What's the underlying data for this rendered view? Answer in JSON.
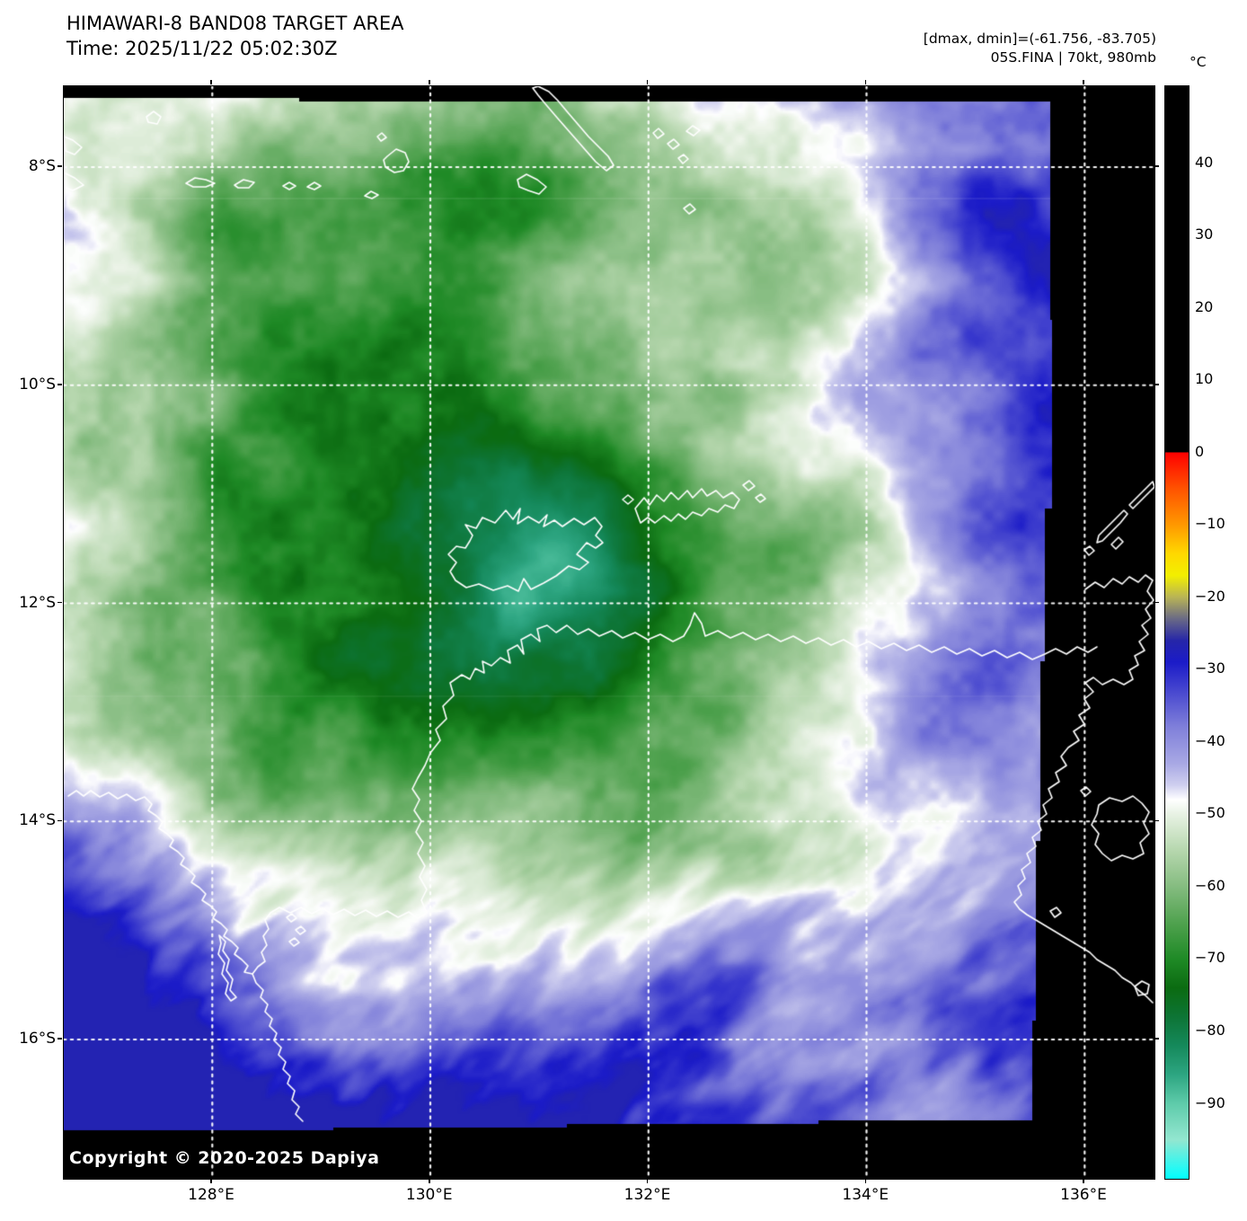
{
  "header": {
    "title": "HIMAWARI-8 BAND08 TARGET AREA",
    "time_line": "Time: 2025/11/22 05:02:30Z",
    "dmax_dmin_line": "[dmax, dmin]=(-61.756, -83.705)",
    "storm_line": "05S.FINA | 70kt, 980mb"
  },
  "map": {
    "copyright": "Copyright © 2020-2025 Dapiya",
    "x_tick_labels": [
      "128°E",
      "130°E",
      "132°E",
      "134°E",
      "136°E"
    ],
    "y_tick_labels": [
      "8°S",
      "10°S",
      "12°S",
      "14°S",
      "16°S"
    ]
  },
  "colorbar": {
    "unit": "°C",
    "tick_labels": [
      "40",
      "30",
      "20",
      "10",
      "0",
      "−10",
      "−20",
      "−30",
      "−40",
      "−50",
      "−60",
      "−70",
      "−80",
      "−90"
    ],
    "tick_values": [
      40,
      30,
      20,
      10,
      0,
      -10,
      -20,
      -30,
      -40,
      -50,
      -60,
      -70,
      -80,
      -90
    ],
    "vmax": 50.6,
    "vmin": -100.4,
    "palette": [
      {
        "t": -100.4,
        "c": "#00ffff"
      },
      {
        "t": -95,
        "c": "#93e6d0"
      },
      {
        "t": -90,
        "c": "#5ecbaa"
      },
      {
        "t": -86,
        "c": "#2da581"
      },
      {
        "t": -82,
        "c": "#15895b"
      },
      {
        "t": -78,
        "c": "#0d7435"
      },
      {
        "t": -74,
        "c": "#0b6b11"
      },
      {
        "t": -70,
        "c": "#1f8a26"
      },
      {
        "t": -65,
        "c": "#50a24f"
      },
      {
        "t": -60,
        "c": "#85bc80"
      },
      {
        "t": -55,
        "c": "#b6d7ae"
      },
      {
        "t": -50,
        "c": "#e8f2e4"
      },
      {
        "t": -48,
        "c": "#ffffff"
      },
      {
        "t": -46,
        "c": "#cfcfef"
      },
      {
        "t": -43,
        "c": "#a8a8e4"
      },
      {
        "t": -38,
        "c": "#8080da"
      },
      {
        "t": -33,
        "c": "#4747cf"
      },
      {
        "t": -29,
        "c": "#1b1bc8"
      },
      {
        "t": -26,
        "c": "#2626a8"
      },
      {
        "t": -23,
        "c": "#6a6a85"
      },
      {
        "t": -20,
        "c": "#b9b455"
      },
      {
        "t": -17,
        "c": "#f2ef00"
      },
      {
        "t": -14,
        "c": "#ffd800"
      },
      {
        "t": -10,
        "c": "#ff9800"
      },
      {
        "t": -5,
        "c": "#ff5200"
      },
      {
        "t": 0,
        "c": "#ff0000"
      },
      {
        "t": 0.01,
        "c": "#000000"
      },
      {
        "t": 50.6,
        "c": "#000000"
      }
    ]
  },
  "chart_data": {
    "type": "heatmap",
    "title": "HIMAWARI-8 BAND08 TARGET AREA",
    "xlabel_ticks_lon_e": [
      128,
      130,
      132,
      134,
      136
    ],
    "ylabel_ticks_lat_s": [
      8,
      10,
      12,
      14,
      16
    ],
    "x_range_lon_e": [
      126.6,
      136.6
    ],
    "y_range_lat_s": [
      7.3,
      17.3
    ],
    "colorbar_range_c": [
      -100,
      50
    ],
    "brightness_temp_extrema_c": {
      "dmax": -61.756,
      "dmin": -83.705
    },
    "cyclone_center_approx_lon_lat": [
      131.0,
      -12.2
    ],
    "legend_position": "right-colorbar",
    "grid": "dotted-white"
  }
}
